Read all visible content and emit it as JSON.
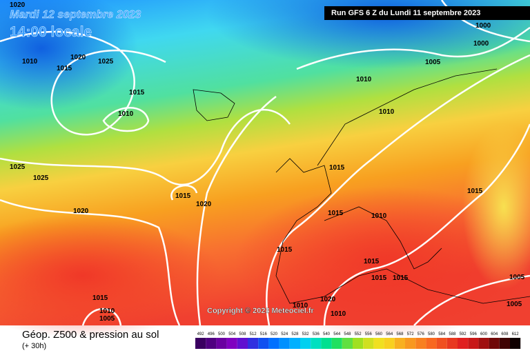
{
  "header": {
    "date": "Mardi 12 septembre 2023",
    "time": "14:00 locale",
    "run": "Run GFS 6 Z du Lundi 11 septembre 2023"
  },
  "isobar_labels": [
    "1020",
    "1010",
    "1015",
    "1020",
    "1025",
    "1015",
    "1010",
    "1000",
    "1000",
    "1005",
    "1010",
    "1010",
    "1025",
    "1025",
    "1015",
    "1015",
    "1020",
    "1020",
    "1015",
    "1015",
    "1010",
    "1015",
    "1015",
    "1015",
    "1015",
    "1005",
    "1015",
    "1020",
    "1010",
    "1010",
    "1005",
    "1010",
    "1005"
  ],
  "copyright": "Copyright © 2023 Meteociel.fr",
  "legend": {
    "title": "Géop. Z500 & pression au sol",
    "subtitle": "(+ 30h)",
    "scale": [
      492,
      496,
      500,
      504,
      508,
      512,
      516,
      520,
      524,
      528,
      532,
      536,
      540,
      544,
      548,
      552,
      556,
      560,
      564,
      568,
      572,
      576,
      580,
      584,
      588,
      592,
      596,
      600,
      604,
      608,
      612
    ]
  }
}
